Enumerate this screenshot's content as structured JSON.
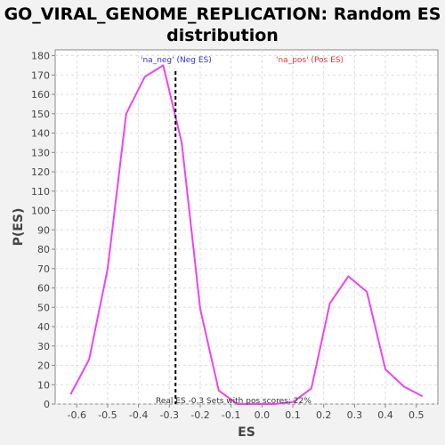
{
  "chart_data": {
    "type": "line",
    "title_line1": "GO_VIRAL_GENOME_REPLICATION: Random ES",
    "title_line2": "distribution",
    "xlabel": "ES",
    "ylabel": "P(ES)",
    "xlim": [
      -0.67,
      0.57
    ],
    "ylim": [
      0,
      183
    ],
    "xticks": [
      -0.6,
      -0.5,
      -0.4,
      -0.3,
      -0.2,
      -0.1,
      0.0,
      0.1,
      0.2,
      0.3,
      0.4,
      0.5
    ],
    "xtick_labels": [
      "-0.6",
      "-0.5",
      "-0.4",
      "-0.3",
      "-0.2",
      "-0.1",
      "0.0",
      "0.1",
      "0.2",
      "0.3",
      "0.4",
      "0.5"
    ],
    "yticks": [
      0,
      10,
      20,
      30,
      40,
      50,
      60,
      70,
      80,
      90,
      100,
      110,
      120,
      130,
      140,
      150,
      160,
      170,
      180
    ],
    "ytick_labels": [
      "0",
      "10",
      "20",
      "30",
      "40",
      "50",
      "60",
      "70",
      "80",
      "90",
      "100",
      "110",
      "120",
      "130",
      "140",
      "150",
      "160",
      "170",
      "180"
    ],
    "grid": true,
    "series": [
      {
        "color": "#ee44ee",
        "x": [
          -0.62,
          -0.56,
          -0.5,
          -0.44,
          -0.38,
          -0.32,
          -0.26,
          -0.2,
          -0.14,
          -0.08,
          -0.02,
          0.04,
          0.1,
          0.16,
          0.22,
          0.28,
          0.34,
          0.4,
          0.46,
          0.52
        ],
        "y": [
          5,
          23,
          70,
          150,
          169,
          175,
          135,
          49,
          7,
          0,
          0,
          0,
          1,
          8,
          52,
          66,
          58,
          18,
          9,
          4
        ]
      }
    ],
    "real_es": -0.28,
    "annotations": {
      "neg_label": "'na_neg' (Neg ES)",
      "neg_color": "#3333cc",
      "pos_label": "'na_pos' (Pos ES)",
      "pos_color": "#ee3333",
      "footer": "Real ES -0.3  Sets with pos scores: 22%"
    }
  }
}
